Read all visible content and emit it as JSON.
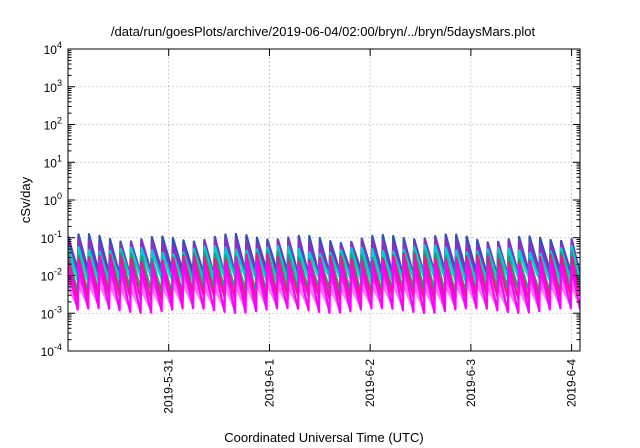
{
  "chart_data": {
    "type": "line",
    "title": "/data/run/goesPlots/archive/2019-06-04/02:00/bryn/../bryn/5daysMars.plot",
    "xlabel": "Coordinated Universal Time (UTC)",
    "ylabel": "cSv/day",
    "yscale": "log",
    "ylim": [
      0.0001,
      10000
    ],
    "yticks": [
      {
        "base": "10",
        "exp": "-4"
      },
      {
        "base": "10",
        "exp": "-3"
      },
      {
        "base": "10",
        "exp": "-2"
      },
      {
        "base": "10",
        "exp": "-1"
      },
      {
        "base": "10",
        "exp": "0"
      },
      {
        "base": "10",
        "exp": "1"
      },
      {
        "base": "10",
        "exp": "2"
      },
      {
        "base": "10",
        "exp": "3"
      },
      {
        "base": "10",
        "exp": "4"
      }
    ],
    "xlim": [
      "2019-05-30T00:00",
      "2019-06-04T02:00"
    ],
    "xticks": [
      {
        "label": "2019-5-31",
        "value": "2019-05-31T00:00"
      },
      {
        "label": "2019-6-1",
        "value": "2019-06-01T00:00"
      },
      {
        "label": "2019-6-2",
        "value": "2019-06-02T00:00"
      },
      {
        "label": "2019-6-3",
        "value": "2019-06-03T00:00"
      },
      {
        "label": "2019-6-4",
        "value": "2019-06-04T00:00"
      }
    ],
    "grid": true,
    "legend": "none",
    "sawtooth_period_hours": 2.5,
    "series": [
      {
        "color": "#2a52be",
        "peak": 0.1,
        "trough": 0.012
      },
      {
        "color": "#8b2fc9",
        "peak": 0.08,
        "trough": 0.01
      },
      {
        "color": "#00cfcf",
        "peak": 0.05,
        "trough": 0.008
      },
      {
        "color": "#1aa37a",
        "peak": 0.035,
        "trough": 0.004
      },
      {
        "color": "#e81c8e",
        "peak": 0.03,
        "trough": 0.0025
      },
      {
        "color": "#ff00ff",
        "peak": 0.02,
        "trough": 0.0012
      }
    ]
  }
}
